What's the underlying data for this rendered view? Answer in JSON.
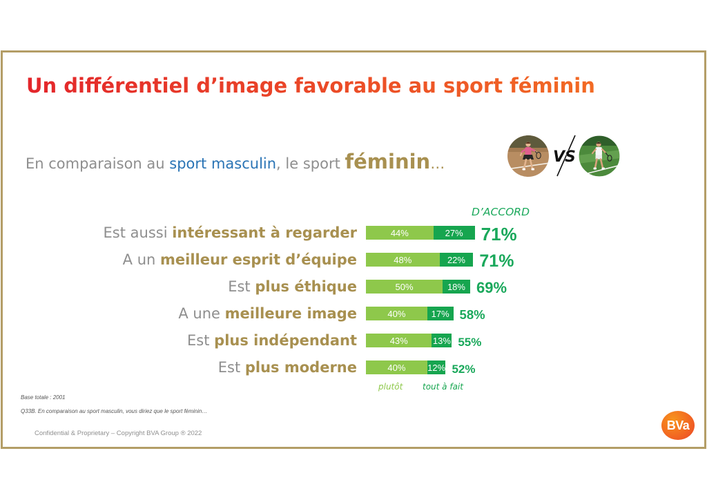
{
  "colors": {
    "frame": "#b39d66",
    "title_start": "#e3262b",
    "title_end": "#f26a24",
    "grey": "#8e8e8e",
    "gold": "#a89050",
    "blue": "#2a74b5",
    "green": "#1aa85b",
    "logo_orange": "#f26522"
  },
  "slide": {
    "title": "Un différentiel d’image favorable au sport féminin",
    "subtitle": {
      "lead": "En comparaison au",
      "masculin": "sport masculin",
      "middle": ", le sport",
      "feminin": "féminin",
      "ellipsis": "…"
    },
    "photos": {
      "left": "female-tennis-player-photo",
      "right": "male-tennis-player-photo"
    },
    "versus": "VS",
    "footnotes": {
      "base": "Base totale : 2001",
      "question": "Q33B. En comparaison au sport masculin, vous diriez que le sport féminin…"
    },
    "copyright": "Confidential & Proprietary – Copyright BVA Group ® 2022",
    "logo_text": "BVa"
  },
  "chart_data": {
    "type": "bar",
    "orientation": "horizontal",
    "stacked": true,
    "categories": [
      {
        "plain": "Est aussi",
        "bold": "intéressant à regarder"
      },
      {
        "plain": "A un",
        "bold": "meilleur esprit d’équipe"
      },
      {
        "plain": "Est",
        "bold": "plus éthique"
      },
      {
        "plain": "A une",
        "bold": "meilleure image"
      },
      {
        "plain": "Est",
        "bold": "plus indépendant"
      },
      {
        "plain": "Est",
        "bold": "plus moderne"
      }
    ],
    "series": [
      {
        "name": "plutôt",
        "color": "#8ec84b",
        "values": [
          44,
          48,
          50,
          40,
          43,
          40
        ]
      },
      {
        "name": "tout à fait",
        "color": "#16a54f",
        "values": [
          27,
          22,
          18,
          17,
          13,
          12
        ]
      }
    ],
    "totals_header": "D’ACCORD",
    "totals": [
      71,
      71,
      69,
      58,
      55,
      52
    ],
    "value_suffix": "%",
    "legend": "bottom"
  }
}
